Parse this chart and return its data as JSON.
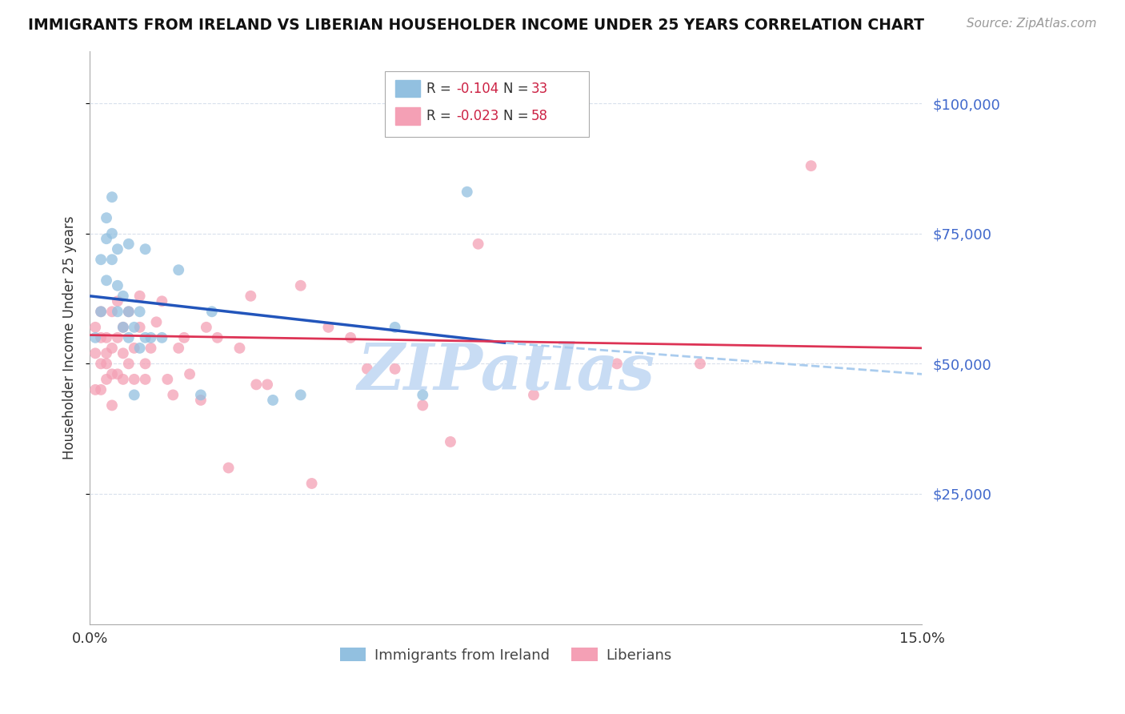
{
  "title": "IMMIGRANTS FROM IRELAND VS LIBERIAN HOUSEHOLDER INCOME UNDER 25 YEARS CORRELATION CHART",
  "source": "Source: ZipAtlas.com",
  "ylabel": "Householder Income Under 25 years",
  "xlim": [
    0.0,
    0.15
  ],
  "ylim": [
    0,
    110000
  ],
  "ytick_vals": [
    25000,
    50000,
    75000,
    100000
  ],
  "ytick_labels": [
    "$25,000",
    "$50,000",
    "$75,000",
    "$100,000"
  ],
  "legend_ireland_r": "-0.104",
  "legend_ireland_n": "33",
  "legend_liberia_r": "-0.023",
  "legend_liberia_n": "58",
  "ireland_color": "#92c0e0",
  "liberia_color": "#f4a0b5",
  "ireland_line_color": "#2255bb",
  "liberia_line_color": "#dd3355",
  "dashed_line_color": "#aaccee",
  "watermark": "ZIPatlas",
  "watermark_color": "#c8dcf4",
  "ireland_x": [
    0.001,
    0.002,
    0.002,
    0.003,
    0.003,
    0.003,
    0.004,
    0.004,
    0.004,
    0.005,
    0.005,
    0.005,
    0.006,
    0.006,
    0.007,
    0.007,
    0.007,
    0.008,
    0.008,
    0.009,
    0.009,
    0.01,
    0.01,
    0.011,
    0.013,
    0.016,
    0.02,
    0.022,
    0.033,
    0.038,
    0.055,
    0.06,
    0.068
  ],
  "ireland_y": [
    55000,
    60000,
    70000,
    74000,
    66000,
    78000,
    70000,
    75000,
    82000,
    60000,
    65000,
    72000,
    63000,
    57000,
    73000,
    60000,
    55000,
    44000,
    57000,
    60000,
    53000,
    72000,
    55000,
    55000,
    55000,
    68000,
    44000,
    60000,
    43000,
    44000,
    57000,
    44000,
    83000
  ],
  "liberia_x": [
    0.001,
    0.001,
    0.001,
    0.002,
    0.002,
    0.002,
    0.002,
    0.003,
    0.003,
    0.003,
    0.003,
    0.004,
    0.004,
    0.004,
    0.004,
    0.005,
    0.005,
    0.005,
    0.006,
    0.006,
    0.006,
    0.007,
    0.007,
    0.008,
    0.008,
    0.009,
    0.009,
    0.01,
    0.01,
    0.011,
    0.012,
    0.013,
    0.014,
    0.015,
    0.016,
    0.017,
    0.018,
    0.02,
    0.021,
    0.023,
    0.025,
    0.027,
    0.029,
    0.03,
    0.032,
    0.038,
    0.04,
    0.043,
    0.047,
    0.05,
    0.055,
    0.06,
    0.065,
    0.07,
    0.08,
    0.095,
    0.11,
    0.13
  ],
  "liberia_y": [
    45000,
    52000,
    57000,
    55000,
    60000,
    50000,
    45000,
    52000,
    47000,
    55000,
    50000,
    60000,
    53000,
    48000,
    42000,
    62000,
    55000,
    48000,
    52000,
    47000,
    57000,
    50000,
    60000,
    53000,
    47000,
    63000,
    57000,
    50000,
    47000,
    53000,
    58000,
    62000,
    47000,
    44000,
    53000,
    55000,
    48000,
    43000,
    57000,
    55000,
    30000,
    53000,
    63000,
    46000,
    46000,
    65000,
    27000,
    57000,
    55000,
    49000,
    49000,
    42000,
    35000,
    73000,
    44000,
    50000,
    50000,
    88000
  ],
  "background_color": "#ffffff",
  "grid_color": "#d8e0ec",
  "marker_size": 100,
  "ireland_line_x0": 0.0,
  "ireland_line_y0": 63000,
  "ireland_line_x1": 0.075,
  "ireland_line_y1": 54000,
  "liberia_line_x0": 0.0,
  "liberia_line_y0": 55500,
  "liberia_line_x1": 0.15,
  "liberia_line_y1": 53000,
  "dashed_line_x0": 0.075,
  "dashed_line_y0": 54000,
  "dashed_line_x1": 0.15,
  "dashed_line_y1": 48000
}
